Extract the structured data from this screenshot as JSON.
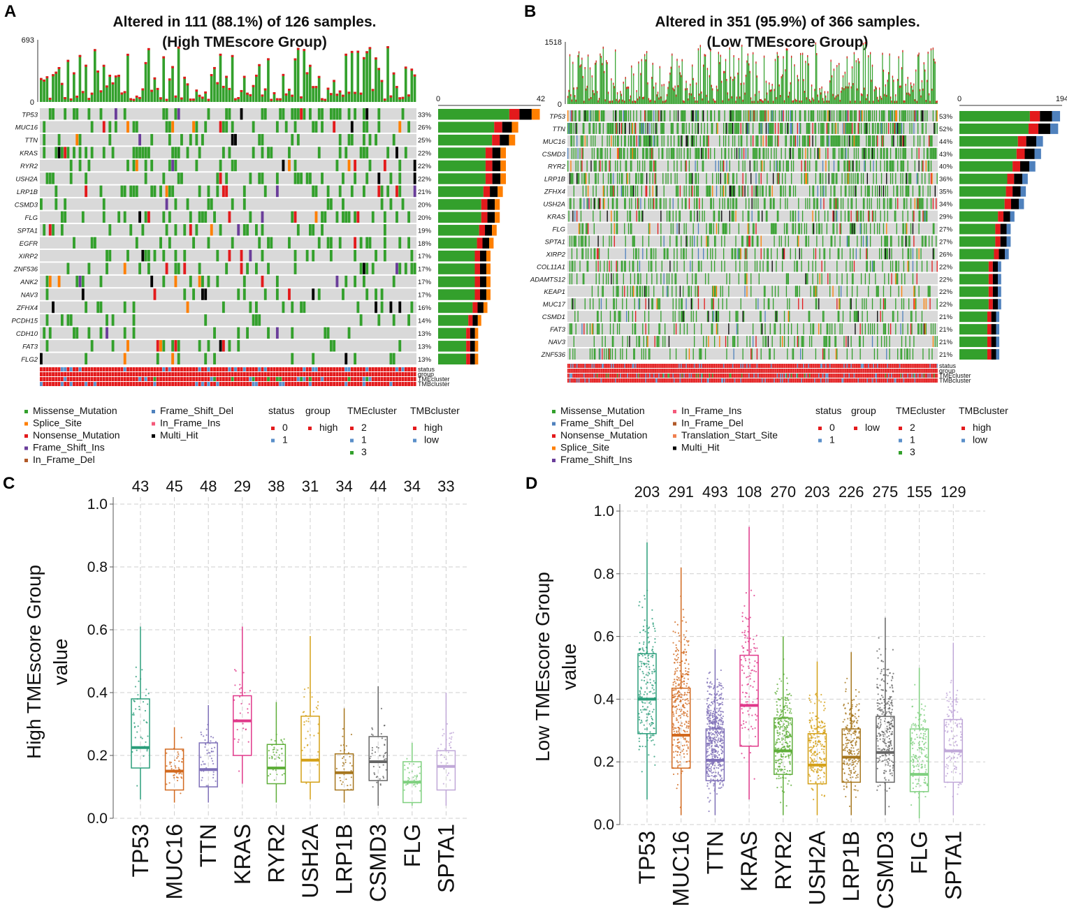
{
  "colors": {
    "Missense_Mutation": "#33a02c",
    "Splice_Site": "#ff7f00",
    "Nonsense_Mutation": "#e31a1c",
    "Frame_Shift_Ins": "#6a3d9a",
    "In_Frame_Del": "#b15928",
    "Frame_Shift_Del": "#4f81bd",
    "In_Frame_Ins": "#f4597a",
    "Translation_Start_Site": "#f08050",
    "Multi_Hit": "#000000",
    "red": "#e31a1c",
    "blue": "#5b8fc9",
    "green": "#33a02c",
    "grey": "#d9d9d9"
  },
  "chart_data": [
    {
      "type": "oncoplot",
      "panel": "A",
      "title_line1": "Altered in 111 (88.1%) of 126 samples.",
      "title_line2": "(High TMEscore Group)",
      "n_samples": 126,
      "top_axis": [
        "693",
        "0"
      ],
      "side_axis": [
        "0",
        "42"
      ],
      "side_max": 42,
      "genes": [
        "TP53",
        "MUC16",
        "TTN",
        "KRAS",
        "RYR2",
        "USH2A",
        "LRP1B",
        "CSMD3",
        "FLG",
        "SPTA1",
        "EGFR",
        "XIRP2",
        "ZNF536",
        "ANK2",
        "NAV3",
        "ZFHX4",
        "PCDH15",
        "CDH10",
        "FAT3",
        "FLG2"
      ],
      "pcts": [
        "33%",
        "26%",
        "25%",
        "22%",
        "22%",
        "22%",
        "21%",
        "20%",
        "20%",
        "19%",
        "18%",
        "17%",
        "17%",
        "17%",
        "17%",
        "16%",
        "14%",
        "13%",
        "13%",
        "13%"
      ],
      "annotations": [
        "status",
        "group",
        "TMEcluster",
        "TMBcluster"
      ],
      "legend_variants": [
        "Missense_Mutation",
        "Splice_Site",
        "Nonsense_Mutation",
        "Frame_Shift_Ins",
        "In_Frame_Del",
        "Frame_Shift_Del",
        "In_Frame_Ins",
        "Multi_Hit"
      ],
      "legend_status_title": "status",
      "legend_status": [
        "0",
        "1"
      ],
      "legend_group_title": "group",
      "legend_group": [
        "high"
      ],
      "legend_tme_title": "TMEcluster",
      "legend_tme": [
        "2",
        "1",
        "3"
      ],
      "legend_tmb_title": "TMBcluster",
      "legend_tmb": [
        "high",
        "low"
      ]
    },
    {
      "type": "oncoplot",
      "panel": "B",
      "title_line1": "Altered in 351 (95.9%) of 366 samples.",
      "title_line2": "(Low TMEscore Group)",
      "n_samples": 366,
      "top_axis": [
        "1518",
        "0"
      ],
      "side_axis": [
        "0",
        "194"
      ],
      "side_max": 194,
      "genes": [
        "TP53",
        "TTN",
        "MUC16",
        "CSMD3",
        "RYR2",
        "LRP1B",
        "ZFHX4",
        "USH2A",
        "KRAS",
        "FLG",
        "SPTA1",
        "XIRP2",
        "COL11A1",
        "ADAMTS12",
        "KEAP1",
        "MUC17",
        "CSMD1",
        "FAT3",
        "NAV3",
        "ZNF536"
      ],
      "pcts": [
        "53%",
        "52%",
        "44%",
        "43%",
        "40%",
        "36%",
        "35%",
        "34%",
        "29%",
        "27%",
        "27%",
        "26%",
        "22%",
        "22%",
        "22%",
        "22%",
        "21%",
        "21%",
        "21%",
        "21%"
      ],
      "annotations": [
        "status",
        "group",
        "TMEcluster",
        "TMBcluster"
      ],
      "legend_variants": [
        "Missense_Mutation",
        "Frame_Shift_Del",
        "Nonsense_Mutation",
        "Splice_Site",
        "Frame_Shift_Ins",
        "In_Frame_Ins",
        "In_Frame_Del",
        "Translation_Start_Site",
        "Multi_Hit"
      ],
      "legend_status_title": "status",
      "legend_status": [
        "0",
        "1"
      ],
      "legend_group_title": "group",
      "legend_group": [
        "low"
      ],
      "legend_tme_title": "TMEcluster",
      "legend_tme": [
        "2",
        "1",
        "3"
      ],
      "legend_tmb_title": "TMBcluster",
      "legend_tmb": [
        "high",
        "low"
      ]
    },
    {
      "type": "boxplot",
      "panel": "C",
      "ylabel_line1": "High TMEscore Group",
      "ylabel_line2": "value",
      "ylim": [
        0,
        1
      ],
      "yticks": [
        "0.0",
        "0.2",
        "0.4",
        "0.6",
        "0.8",
        "1.0"
      ],
      "categories": [
        "TP53",
        "MUC16",
        "TTN",
        "KRAS",
        "RYR2",
        "USH2A",
        "LRP1B",
        "CSMD3",
        "FLG",
        "SPTA1"
      ],
      "counts": [
        "43",
        "45",
        "48",
        "29",
        "38",
        "31",
        "34",
        "44",
        "34",
        "33"
      ],
      "box_colors": [
        "#2a9d7a",
        "#d2691e",
        "#7f70b8",
        "#e0388a",
        "#5fae3a",
        "#d4a017",
        "#a6761d",
        "#666666",
        "#7fd07f",
        "#c0a8d8"
      ],
      "stats": [
        {
          "min": 0.06,
          "q1": 0.16,
          "median": 0.225,
          "q3": 0.38,
          "max": 0.61
        },
        {
          "min": 0.05,
          "q1": 0.09,
          "median": 0.15,
          "q3": 0.22,
          "max": 0.29
        },
        {
          "min": 0.05,
          "q1": 0.1,
          "median": 0.155,
          "q3": 0.24,
          "max": 0.36
        },
        {
          "min": 0.11,
          "q1": 0.2,
          "median": 0.31,
          "q3": 0.39,
          "max": 0.61
        },
        {
          "min": 0.05,
          "q1": 0.11,
          "median": 0.16,
          "q3": 0.235,
          "max": 0.37
        },
        {
          "min": 0.06,
          "q1": 0.115,
          "median": 0.185,
          "q3": 0.325,
          "max": 0.58
        },
        {
          "min": 0.05,
          "q1": 0.09,
          "median": 0.145,
          "q3": 0.205,
          "max": 0.35
        },
        {
          "min": 0.04,
          "q1": 0.12,
          "median": 0.18,
          "q3": 0.26,
          "max": 0.42
        },
        {
          "min": 0.04,
          "q1": 0.05,
          "median": 0.115,
          "q3": 0.18,
          "max": 0.24
        },
        {
          "min": 0.04,
          "q1": 0.09,
          "median": 0.165,
          "q3": 0.215,
          "max": 0.4
        }
      ]
    },
    {
      "type": "boxplot",
      "panel": "D",
      "ylabel_line1": "Low TMEscore Group",
      "ylabel_line2": "value",
      "ylim": [
        0,
        1
      ],
      "yticks": [
        "0.0",
        "0.2",
        "0.4",
        "0.6",
        "0.8",
        "1.0"
      ],
      "categories": [
        "TP53",
        "MUC16",
        "TTN",
        "KRAS",
        "RYR2",
        "USH2A",
        "LRP1B",
        "CSMD3",
        "FLG",
        "SPTA1"
      ],
      "counts": [
        "203",
        "291",
        "493",
        "108",
        "270",
        "203",
        "226",
        "275",
        "155",
        "129"
      ],
      "box_colors": [
        "#2a9d7a",
        "#d2691e",
        "#7f70b8",
        "#e0388a",
        "#5fae3a",
        "#d4a017",
        "#a6761d",
        "#666666",
        "#7fd07f",
        "#c0a8d8"
      ],
      "stats": [
        {
          "min": 0.08,
          "q1": 0.29,
          "median": 0.4,
          "q3": 0.545,
          "max": 0.9
        },
        {
          "min": 0.03,
          "q1": 0.18,
          "median": 0.285,
          "q3": 0.435,
          "max": 0.82
        },
        {
          "min": 0.03,
          "q1": 0.14,
          "median": 0.205,
          "q3": 0.305,
          "max": 0.56
        },
        {
          "min": 0.08,
          "q1": 0.25,
          "median": 0.38,
          "q3": 0.54,
          "max": 0.95
        },
        {
          "min": 0.03,
          "q1": 0.16,
          "median": 0.235,
          "q3": 0.34,
          "max": 0.6
        },
        {
          "min": 0.03,
          "q1": 0.13,
          "median": 0.19,
          "q3": 0.29,
          "max": 0.52
        },
        {
          "min": 0.03,
          "q1": 0.135,
          "median": 0.215,
          "q3": 0.305,
          "max": 0.55
        },
        {
          "min": 0.03,
          "q1": 0.135,
          "median": 0.23,
          "q3": 0.345,
          "max": 0.66
        },
        {
          "min": 0.02,
          "q1": 0.105,
          "median": 0.16,
          "q3": 0.305,
          "max": 0.5
        },
        {
          "min": 0.03,
          "q1": 0.135,
          "median": 0.235,
          "q3": 0.335,
          "max": 0.58
        }
      ]
    }
  ]
}
